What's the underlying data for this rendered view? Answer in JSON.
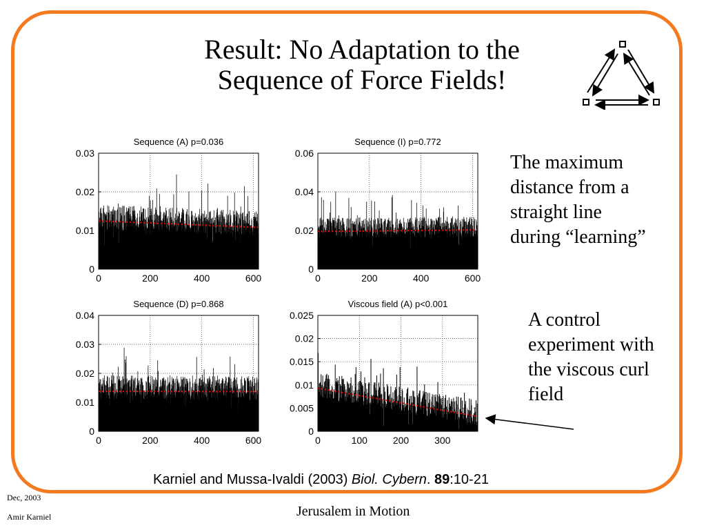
{
  "title": [
    "Result: No Adaptation to the",
    "Sequence of Force Fields!"
  ],
  "text_top": [
    "The maximum",
    "distance from a",
    "straight line",
    "during “learning”"
  ],
  "text_bottom": [
    "A control",
    "experiment with",
    "the viscous curl",
    "field"
  ],
  "citation": {
    "authors": "Karniel and Mussa-Ivaldi (2003) ",
    "journal": "Biol. Cybern",
    "dot": ". ",
    "volume": "89",
    "pages": ":10-21"
  },
  "footer": {
    "date": "Dec, 2003",
    "author": "Amir Karniel",
    "center": "Jerusalem in Motion"
  },
  "colors": {
    "frame": "#f47a20",
    "bars": "#000000",
    "fit": "#ff0000"
  },
  "chart_data": [
    {
      "type": "bar",
      "title": "Sequence (A) p=0.036",
      "xlabel": "",
      "ylabel": "",
      "xlim": [
        0,
        620
      ],
      "ylim": [
        0,
        0.03
      ],
      "xticks": [
        0,
        200,
        400,
        600
      ],
      "xtick_labels": [
        "0",
        "200",
        "400",
        "600"
      ],
      "yticks": [
        0,
        0.01,
        0.02,
        0.03
      ],
      "ytick_labels": [
        "0",
        "0.01",
        "0.02",
        "0.03"
      ],
      "grid": true,
      "n": 620,
      "baseline": 0.0125,
      "baseline_end": 0.0108,
      "spread": 0.0065,
      "fit_line": {
        "x": [
          0,
          620
        ],
        "y": [
          0.0125,
          0.0108
        ]
      }
    },
    {
      "type": "bar",
      "title": "Sequence (I) p=0.772",
      "xlabel": "",
      "ylabel": "",
      "xlim": [
        0,
        620
      ],
      "ylim": [
        0,
        0.06
      ],
      "xticks": [
        0,
        200,
        400,
        600
      ],
      "xtick_labels": [
        "0",
        "200",
        "400",
        "600"
      ],
      "yticks": [
        0,
        0.02,
        0.04,
        0.06
      ],
      "ytick_labels": [
        "0",
        "0.02",
        "0.04",
        "0.06"
      ],
      "grid": true,
      "n": 620,
      "baseline": 0.0195,
      "baseline_end": 0.0203,
      "spread": 0.011,
      "fit_line": {
        "x": [
          0,
          620
        ],
        "y": [
          0.0195,
          0.0203
        ]
      }
    },
    {
      "type": "bar",
      "title": "Sequence (D) p=0.868",
      "xlabel": "",
      "ylabel": "",
      "xlim": [
        0,
        620
      ],
      "ylim": [
        0,
        0.04
      ],
      "xticks": [
        0,
        200,
        400,
        600
      ],
      "xtick_labels": [
        "0",
        "200",
        "400",
        "600"
      ],
      "yticks": [
        0,
        0.01,
        0.02,
        0.03,
        0.04
      ],
      "ytick_labels": [
        "0",
        "0.01",
        "0.02",
        "0.03",
        "0.04"
      ],
      "grid": true,
      "n": 620,
      "baseline": 0.0138,
      "baseline_end": 0.0137,
      "spread": 0.0085,
      "fit_line": {
        "x": [
          0,
          620
        ],
        "y": [
          0.0138,
          0.0137
        ]
      }
    },
    {
      "type": "bar",
      "title": "Viscous field (A) p<0.001",
      "xlabel": "",
      "ylabel": "",
      "xlim": [
        0,
        385
      ],
      "ylim": [
        0,
        0.025
      ],
      "xticks": [
        0,
        100,
        200,
        300
      ],
      "xtick_labels": [
        "0",
        "100",
        "200",
        "300"
      ],
      "yticks": [
        0,
        0.005,
        0.01,
        0.015,
        0.02,
        0.025
      ],
      "ytick_labels": [
        "0",
        "0.005",
        "0.01",
        "0.015",
        "0.02",
        "0.025"
      ],
      "grid": true,
      "n": 385,
      "baseline": 0.0093,
      "baseline_end": 0.0032,
      "spread": 0.0055,
      "fit_line": {
        "x": [
          0,
          385
        ],
        "y": [
          0.0093,
          0.0032
        ]
      }
    }
  ],
  "diagram": {
    "nodes": 3,
    "arrows": 6
  }
}
